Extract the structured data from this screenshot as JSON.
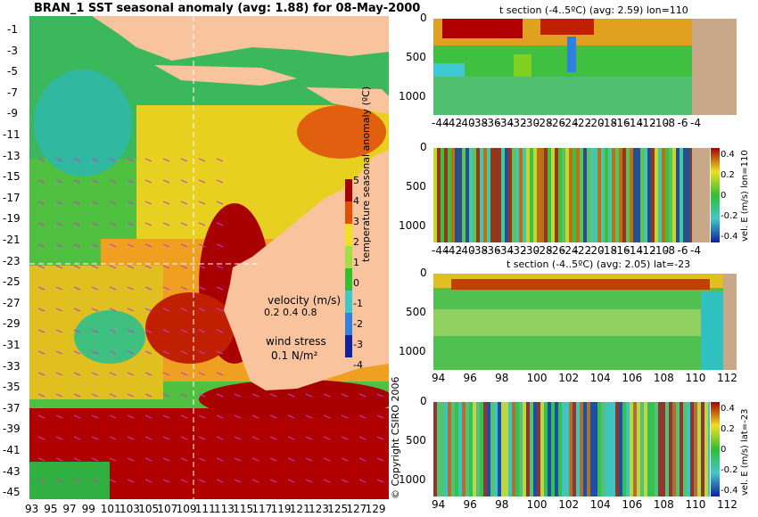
{
  "map": {
    "title": "BRAN_1 SST seasonal anomaly (avg: 1.88) for 08-May-2000",
    "lat_ticks": [
      "-1",
      "-3",
      "-5",
      "-7",
      "-9",
      "-11",
      "-13",
      "-15",
      "-17",
      "-19",
      "-21",
      "-23",
      "-25",
      "-27",
      "-29",
      "-31",
      "-33",
      "-35",
      "-37",
      "-39",
      "-41",
      "-43",
      "-45"
    ],
    "lon_ticks": [
      "93",
      "95",
      "97",
      "99",
      "101",
      "103",
      "105",
      "107",
      "109",
      "111",
      "113",
      "115",
      "117",
      "119",
      "121",
      "123",
      "125",
      "127",
      "129"
    ],
    "colorbar_label": "temperature seasonal anomaly (ºC)",
    "colorbar_ticks": [
      "5",
      "4",
      "3",
      "2",
      "1",
      "0",
      "-1",
      "-2",
      "-3",
      "-4"
    ],
    "velocity_label": "velocity (m/s)",
    "velocity_scale": "0.2 0.4 0.8",
    "wind_label": "wind stress",
    "wind_scale": "0.1 N/m²",
    "copyright": "© Copyright CSIRO 2006",
    "section_lon": 110,
    "section_lat": -23
  },
  "panels": [
    {
      "title": "t section (-4..5ºC) (avg: 2.59) lon=110",
      "x_ticks": [
        "-44",
        "-42",
        "-40",
        "-38",
        "-36",
        "-34",
        "-32",
        "-30",
        "-28",
        "-26",
        "-24",
        "-22",
        "-20",
        "-18",
        "-16",
        "-14",
        "-12",
        "-10",
        "-8",
        "-6",
        "-4"
      ],
      "y_ticks": [
        "0",
        "500",
        "1000"
      ],
      "has_colorbar": false
    },
    {
      "title": "",
      "x_ticks": [
        "-44",
        "-42",
        "-40",
        "-38",
        "-36",
        "-34",
        "-32",
        "-30",
        "-28",
        "-26",
        "-24",
        "-22",
        "-20",
        "-18",
        "-16",
        "-14",
        "-12",
        "-10",
        "-8",
        "-6",
        "-4"
      ],
      "y_ticks": [
        "0",
        "500",
        "1000"
      ],
      "has_colorbar": true,
      "colorbar_label": "vel. E (m/s) lon=110",
      "colorbar_ticks": [
        "0.4",
        "0.2",
        "0",
        "-0.2",
        "-0.4"
      ]
    },
    {
      "title": "t section (-4..5ºC) (avg: 2.05) lat=-23",
      "x_ticks": [
        "94",
        "96",
        "98",
        "100",
        "102",
        "104",
        "106",
        "108",
        "110",
        "112"
      ],
      "y_ticks": [
        "0",
        "500",
        "1000"
      ],
      "has_colorbar": false
    },
    {
      "title": "",
      "x_ticks": [
        "94",
        "96",
        "98",
        "100",
        "102",
        "104",
        "106",
        "108",
        "110",
        "112"
      ],
      "y_ticks": [
        "0",
        "500",
        "1000"
      ],
      "has_colorbar": true,
      "colorbar_label": "vel. E (m/s) lat=-23",
      "colorbar_ticks": [
        "0.4",
        "0.2",
        "0",
        "-0.2",
        "-0.4"
      ]
    }
  ],
  "colors": {
    "land": "#f9c49d",
    "land_section": "#c8a888",
    "warm": "#a80000",
    "hot": "#e05000",
    "yellow": "#f0e020",
    "green": "#30c030",
    "cyan": "#40c8c8",
    "blue": "#2040d0",
    "arrow": "#c040c0"
  }
}
